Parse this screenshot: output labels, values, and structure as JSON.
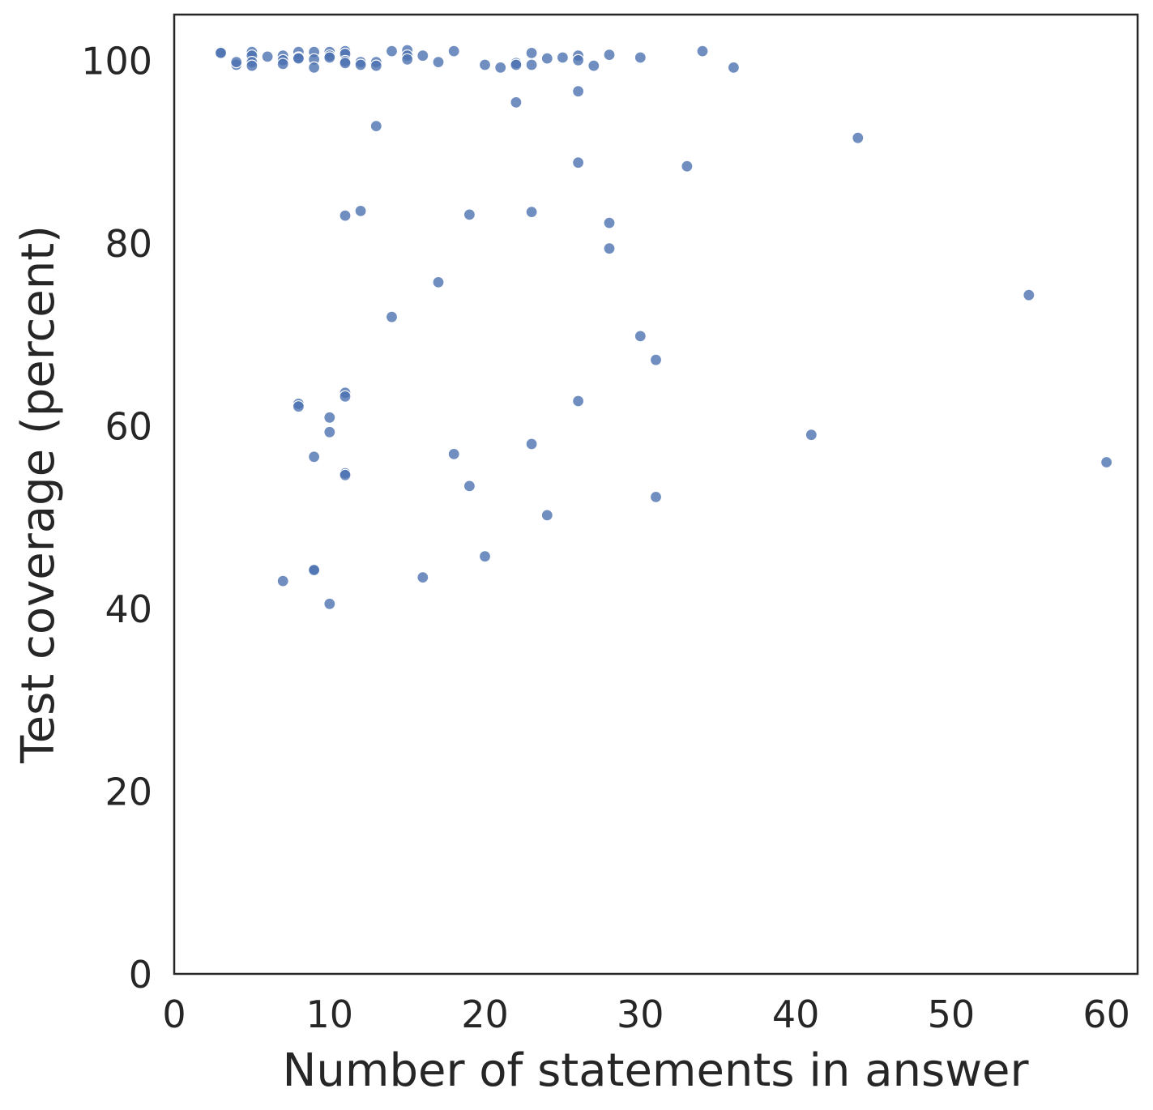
{
  "chart_data": {
    "type": "scatter",
    "title": "",
    "xlabel": "Number of statements in answer",
    "ylabel": "Test coverage (percent)",
    "xlim": [
      0,
      62
    ],
    "ylim": [
      0,
      105
    ],
    "xticks": [
      0,
      10,
      20,
      30,
      40,
      50,
      60
    ],
    "yticks": [
      0,
      20,
      40,
      60,
      80,
      100
    ],
    "grid": false,
    "legend": "none",
    "color": "#4c72b0",
    "points": [
      {
        "x": 3,
        "y": 100.9
      },
      {
        "x": 3,
        "y": 100.8
      },
      {
        "x": 4,
        "y": 99.5
      },
      {
        "x": 4,
        "y": 99.8
      },
      {
        "x": 5,
        "y": 100.9
      },
      {
        "x": 5,
        "y": 100.5
      },
      {
        "x": 5,
        "y": 99.8
      },
      {
        "x": 5,
        "y": 99.4
      },
      {
        "x": 6,
        "y": 100.4
      },
      {
        "x": 7,
        "y": 100.5
      },
      {
        "x": 7,
        "y": 100.0
      },
      {
        "x": 7,
        "y": 99.6
      },
      {
        "x": 8,
        "y": 100.9
      },
      {
        "x": 8,
        "y": 100.3
      },
      {
        "x": 8,
        "y": 100.2
      },
      {
        "x": 9,
        "y": 100.9
      },
      {
        "x": 9,
        "y": 100.1
      },
      {
        "x": 9,
        "y": 99.2
      },
      {
        "x": 10,
        "y": 100.9
      },
      {
        "x": 10,
        "y": 100.5
      },
      {
        "x": 10,
        "y": 100.3
      },
      {
        "x": 11,
        "y": 101.0
      },
      {
        "x": 11,
        "y": 100.7
      },
      {
        "x": 11,
        "y": 99.9
      },
      {
        "x": 11,
        "y": 99.7
      },
      {
        "x": 12,
        "y": 99.8
      },
      {
        "x": 12,
        "y": 99.5
      },
      {
        "x": 13,
        "y": 99.8
      },
      {
        "x": 13,
        "y": 99.4
      },
      {
        "x": 14,
        "y": 101.0
      },
      {
        "x": 15,
        "y": 101.1
      },
      {
        "x": 15,
        "y": 100.5
      },
      {
        "x": 15,
        "y": 100.1
      },
      {
        "x": 16,
        "y": 100.5
      },
      {
        "x": 17,
        "y": 99.8
      },
      {
        "x": 18,
        "y": 101.0
      },
      {
        "x": 20,
        "y": 99.5
      },
      {
        "x": 21,
        "y": 99.2
      },
      {
        "x": 22,
        "y": 99.7
      },
      {
        "x": 22,
        "y": 99.5
      },
      {
        "x": 23,
        "y": 100.8
      },
      {
        "x": 23,
        "y": 99.5
      },
      {
        "x": 24,
        "y": 100.2
      },
      {
        "x": 25,
        "y": 100.3
      },
      {
        "x": 26,
        "y": 100.5
      },
      {
        "x": 26,
        "y": 100.0
      },
      {
        "x": 27,
        "y": 99.4
      },
      {
        "x": 28,
        "y": 100.6
      },
      {
        "x": 30,
        "y": 100.3
      },
      {
        "x": 34,
        "y": 101.0
      },
      {
        "x": 36,
        "y": 99.2
      },
      {
        "x": 22,
        "y": 95.4
      },
      {
        "x": 26,
        "y": 96.6
      },
      {
        "x": 13,
        "y": 92.8
      },
      {
        "x": 44,
        "y": 91.5
      },
      {
        "x": 26,
        "y": 88.8
      },
      {
        "x": 33,
        "y": 88.4
      },
      {
        "x": 12,
        "y": 83.5
      },
      {
        "x": 11,
        "y": 83.0
      },
      {
        "x": 19,
        "y": 83.1
      },
      {
        "x": 23,
        "y": 83.4
      },
      {
        "x": 28,
        "y": 82.2
      },
      {
        "x": 28,
        "y": 79.4
      },
      {
        "x": 17,
        "y": 75.7
      },
      {
        "x": 55,
        "y": 74.3
      },
      {
        "x": 14,
        "y": 71.9
      },
      {
        "x": 30,
        "y": 69.8
      },
      {
        "x": 31,
        "y": 67.2
      },
      {
        "x": 11,
        "y": 63.6
      },
      {
        "x": 11,
        "y": 63.2
      },
      {
        "x": 26,
        "y": 62.7
      },
      {
        "x": 8,
        "y": 62.4
      },
      {
        "x": 8,
        "y": 62.1
      },
      {
        "x": 10,
        "y": 60.9
      },
      {
        "x": 10,
        "y": 59.3
      },
      {
        "x": 41,
        "y": 59.0
      },
      {
        "x": 23,
        "y": 58.0
      },
      {
        "x": 18,
        "y": 56.9
      },
      {
        "x": 9,
        "y": 56.6
      },
      {
        "x": 60,
        "y": 56.0
      },
      {
        "x": 11,
        "y": 54.8
      },
      {
        "x": 11,
        "y": 54.6
      },
      {
        "x": 19,
        "y": 53.4
      },
      {
        "x": 31,
        "y": 52.2
      },
      {
        "x": 24,
        "y": 50.2
      },
      {
        "x": 20,
        "y": 45.7
      },
      {
        "x": 9,
        "y": 44.3
      },
      {
        "x": 9,
        "y": 44.2
      },
      {
        "x": 16,
        "y": 43.4
      },
      {
        "x": 7,
        "y": 43.0
      },
      {
        "x": 10,
        "y": 40.5
      }
    ]
  }
}
